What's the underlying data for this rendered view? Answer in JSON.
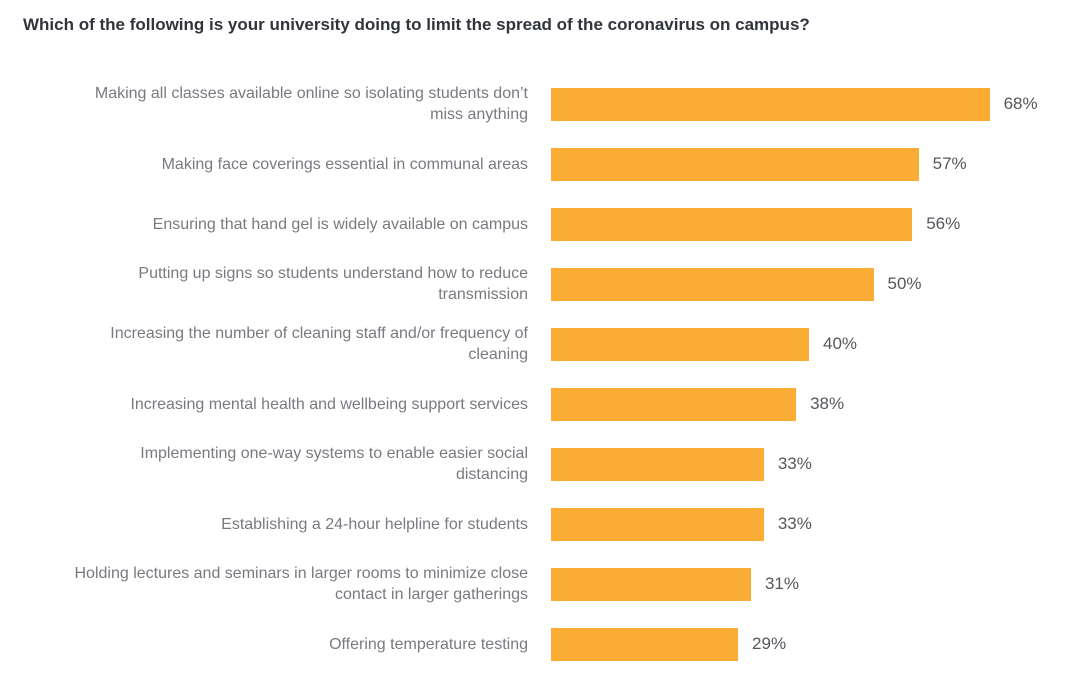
{
  "title": "Which of the following is your university doing to limit the spread of the coronavirus on campus?",
  "chart_data": {
    "type": "bar",
    "orientation": "horizontal",
    "title": "Which of the following is your university doing to limit the spread of the coronavirus on campus?",
    "categories": [
      "Making all classes available online so isolating students don’t miss anything",
      "Making face coverings essential in communal areas",
      "Ensuring that hand gel is widely available on campus",
      "Putting up signs so students understand how to reduce transmission",
      "Increasing the number of cleaning staff and/or frequency of cleaning",
      "Increasing mental health and wellbeing support services",
      "Implementing one-way systems to enable easier social distancing",
      "Establishing a 24-hour helpline for students",
      "Holding lectures and seminars in larger rooms to minimize close contact in larger gatherings",
      "Offering temperature testing"
    ],
    "values": [
      68,
      57,
      56,
      50,
      40,
      38,
      33,
      33,
      31,
      29
    ],
    "value_labels": [
      "68%",
      "57%",
      "56%",
      "50%",
      "40%",
      "38%",
      "33%",
      "33%",
      "31%",
      "29%"
    ],
    "unit": "%",
    "xlim": [
      0,
      70
    ],
    "grid": false,
    "legend": false,
    "bar_color": "#faac34",
    "category_label_color": "#7a7980",
    "value_label_color": "#56565c",
    "title_color": "#31343c",
    "background_color": "#ffffff"
  }
}
